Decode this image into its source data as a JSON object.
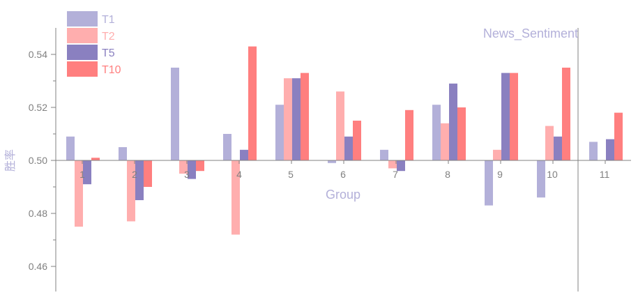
{
  "chart_data": {
    "type": "bar",
    "title": "News_Sentiment",
    "xlabel": "Group",
    "ylabel": "胜率",
    "baseline": 0.5,
    "ylim": [
      0.45,
      0.55
    ],
    "yticks": [
      "0.46",
      "0.48",
      "0.50",
      "0.52",
      "0.54"
    ],
    "categories": [
      "1",
      "2",
      "3",
      "4",
      "5",
      "6",
      "7",
      "8",
      "9",
      "10",
      "11"
    ],
    "series": [
      {
        "name": "T1",
        "color": "#b3b0d9",
        "values": [
          0.509,
          0.505,
          0.535,
          0.51,
          0.521,
          0.499,
          0.504,
          0.521,
          0.483,
          0.486,
          0.507
        ]
      },
      {
        "name": "T2",
        "color": "#ffaeae",
        "values": [
          0.475,
          0.477,
          0.495,
          0.472,
          0.531,
          0.526,
          0.497,
          0.514,
          0.504,
          0.513,
          null
        ]
      },
      {
        "name": "T5",
        "color": "#8a80c0",
        "values": [
          0.491,
          0.485,
          0.493,
          0.504,
          0.531,
          0.509,
          0.496,
          0.529,
          0.533,
          0.509,
          0.508
        ]
      },
      {
        "name": "T10",
        "color": "#ff7f7f",
        "values": [
          0.501,
          0.49,
          0.496,
          0.543,
          0.533,
          0.515,
          0.519,
          0.52,
          0.533,
          0.535,
          0.518
        ]
      }
    ],
    "legend_position": "top-left",
    "grid": false
  }
}
